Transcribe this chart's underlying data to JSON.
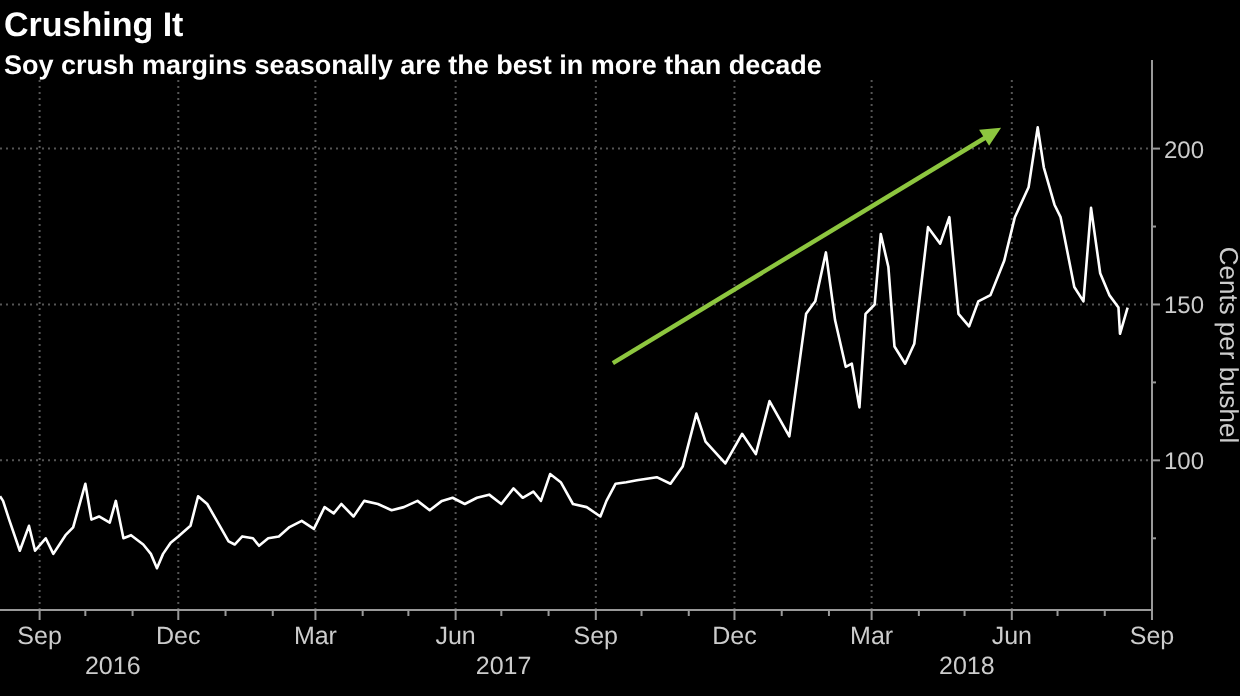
{
  "chart_data": {
    "type": "line",
    "title": "Crushing It",
    "subtitle": "Soy crush margins seasonally are the best in more than decade",
    "ylabel": "Cents per bushel",
    "xlim": [
      "2016-08-06",
      "2018-09-01"
    ],
    "ylim": [
      52,
      222
    ],
    "yticks": [
      {
        "value": 75,
        "label": null
      },
      100,
      {
        "value": 125,
        "label": null
      },
      150,
      {
        "value": 175,
        "label": null
      },
      200
    ],
    "xticks": [
      {
        "value": "2016-09-01",
        "label": "Sep"
      },
      {
        "value": "2016-10-01",
        "label": null
      },
      {
        "value": "2016-11-01",
        "label": null
      },
      {
        "value": "2016-12-01",
        "label": "Dec"
      },
      {
        "value": "2017-01-01",
        "label": null
      },
      {
        "value": "2017-02-01",
        "label": null
      },
      {
        "value": "2017-03-01",
        "label": "Mar"
      },
      {
        "value": "2017-04-01",
        "label": null
      },
      {
        "value": "2017-05-01",
        "label": null
      },
      {
        "value": "2017-06-01",
        "label": "Jun"
      },
      {
        "value": "2017-07-01",
        "label": null
      },
      {
        "value": "2017-08-01",
        "label": null
      },
      {
        "value": "2017-09-01",
        "label": "Sep"
      },
      {
        "value": "2017-10-01",
        "label": null
      },
      {
        "value": "2017-11-01",
        "label": null
      },
      {
        "value": "2017-12-01",
        "label": "Dec"
      },
      {
        "value": "2018-01-01",
        "label": null
      },
      {
        "value": "2018-02-01",
        "label": null
      },
      {
        "value": "2018-03-01",
        "label": "Mar"
      },
      {
        "value": "2018-04-01",
        "label": null
      },
      {
        "value": "2018-05-01",
        "label": null
      },
      {
        "value": "2018-06-01",
        "label": "Jun"
      },
      {
        "value": "2018-07-01",
        "label": null
      },
      {
        "value": "2018-08-01",
        "label": null
      },
      {
        "value": "2018-09-01",
        "label": "Sep"
      }
    ],
    "annotations": [
      "2016",
      "2017",
      "2018"
    ],
    "grid": true,
    "x": [
      "2016-08-06",
      "2016-08-08",
      "2016-08-12",
      "2016-08-19",
      "2016-08-25",
      "2016-08-29",
      "2016-09-05",
      "2016-09-10",
      "2016-09-18",
      "2016-09-23",
      "2016-10-01",
      "2016-10-05",
      "2016-10-10",
      "2016-10-17",
      "2016-10-21",
      "2016-10-26",
      "2016-10-31",
      "2016-11-08",
      "2016-11-13",
      "2016-11-17",
      "2016-11-21",
      "2016-11-26",
      "2016-12-01",
      "2016-12-09",
      "2016-12-14",
      "2016-12-20",
      "2016-12-27",
      "2017-01-03",
      "2017-01-07",
      "2017-01-12",
      "2017-01-19",
      "2017-01-23",
      "2017-01-29",
      "2017-02-05",
      "2017-02-12",
      "2017-02-20",
      "2017-02-28",
      "2017-03-07",
      "2017-03-13",
      "2017-03-18",
      "2017-03-26",
      "2017-04-02",
      "2017-04-11",
      "2017-04-20",
      "2017-04-28",
      "2017-05-07",
      "2017-05-15",
      "2017-05-23",
      "2017-05-30",
      "2017-06-07",
      "2017-06-15",
      "2017-06-23",
      "2017-07-01",
      "2017-07-09",
      "2017-07-15",
      "2017-07-22",
      "2017-07-27",
      "2017-08-02",
      "2017-08-09",
      "2017-08-17",
      "2017-08-26",
      "2017-09-04",
      "2017-09-08",
      "2017-09-14",
      "2017-09-21",
      "2017-09-28",
      "2017-10-11",
      "2017-10-20",
      "2017-10-28",
      "2017-11-06",
      "2017-11-12",
      "2017-11-25",
      "2017-12-06",
      "2017-12-15",
      "2017-12-24",
      "2018-01-06",
      "2018-01-17",
      "2018-01-23",
      "2018-01-30",
      "2018-02-05",
      "2018-02-12",
      "2018-02-16",
      "2018-02-21",
      "2018-02-25",
      "2018-03-03",
      "2018-03-07",
      "2018-03-12",
      "2018-03-16",
      "2018-03-23",
      "2018-03-29",
      "2018-04-07",
      "2018-04-15",
      "2018-04-21",
      "2018-04-27",
      "2018-05-04",
      "2018-05-10",
      "2018-05-18",
      "2018-05-27",
      "2018-06-03",
      "2018-06-12",
      "2018-06-18",
      "2018-06-22",
      "2018-06-29",
      "2018-07-03",
      "2018-07-12",
      "2018-07-18",
      "2018-07-23",
      "2018-07-29",
      "2018-08-04",
      "2018-08-10",
      "2018-08-11",
      "2018-08-16"
    ],
    "series": [
      {
        "color": "#ffffff",
        "values": [
          88.5,
          87,
          81,
          71,
          79,
          71,
          75,
          70,
          76,
          78.5,
          92.5,
          81,
          82,
          80,
          87,
          75,
          76,
          73,
          70,
          65.4,
          70,
          73.6,
          75.6,
          79,
          88.5,
          86,
          80,
          74,
          73,
          75.6,
          75,
          72.6,
          75,
          75.6,
          78.6,
          80.6,
          78,
          85,
          83,
          86,
          82,
          87,
          86,
          84,
          85,
          87,
          84,
          87,
          88,
          86,
          88,
          89,
          86,
          91,
          88,
          90,
          87,
          95.6,
          93,
          86,
          85,
          82,
          87,
          92.5,
          93,
          93.6,
          94.6,
          92.5,
          98,
          115,
          106,
          99,
          108.5,
          102,
          119,
          107.7,
          147,
          151,
          166.7,
          145,
          130,
          131,
          117,
          147,
          150,
          172.6,
          162,
          136.5,
          131,
          137.4,
          174.8,
          169.5,
          178,
          147,
          143,
          151,
          153,
          164,
          178,
          187.6,
          206.8,
          194,
          182,
          178,
          155.6,
          151,
          181,
          160,
          153,
          149,
          140.6,
          149
        ]
      }
    ]
  }
}
